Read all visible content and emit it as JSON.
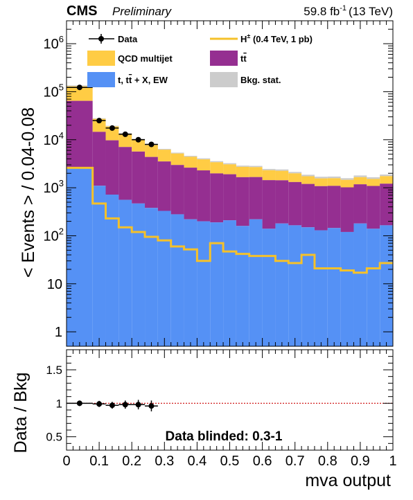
{
  "header": {
    "experiment": "CMS",
    "status": "Preliminary",
    "lumi_value": "59.8 fb",
    "lumi_exp": "-1",
    "energy": "(13 TeV)"
  },
  "colors": {
    "qcd": "#ffcc44",
    "ttbar": "#952f91",
    "other": "#5591f5",
    "signal": "#f5c12a",
    "stat": "#cccccc",
    "data": "#000000",
    "ratio_line": "#cc0000"
  },
  "legend": {
    "data": "Data",
    "signal_pre": "H",
    "signal_sup": "±",
    "signal_post": " (0.4 TeV, 1 pb)",
    "qcd": "QCD multijet",
    "ttbar_pre": "t",
    "ttbar_bar": "t",
    "other_pre": "t, t",
    "other_bar": "t",
    "other_post": " + X, EW",
    "stat": "Bkg. stat."
  },
  "chart_data": {
    "type": "area",
    "xlabel": "mva output",
    "ylabel_upper": "< Events > / 0.04-0.08",
    "ylabel_lower": "Data / Bkg",
    "log_scale_y": true,
    "xlim": [
      0,
      1
    ],
    "ylim": [
      0.5,
      3000000
    ],
    "ratio_ylim": [
      0.3,
      1.8
    ],
    "annotation": "Data blinded: 0.3-1",
    "x_tick_labels": [
      "0",
      "0.1",
      "0.2",
      "0.3",
      "0.4",
      "0.5",
      "0.6",
      "0.7",
      "0.8",
      "0.9",
      "1"
    ],
    "y_tick_labels": [
      {
        "value": 1,
        "base": "1",
        "exp": ""
      },
      {
        "value": 10,
        "base": "10",
        "exp": ""
      },
      {
        "value": 100,
        "base": "10",
        "exp": "2"
      },
      {
        "value": 1000,
        "base": "10",
        "exp": "3"
      },
      {
        "value": 10000,
        "base": "10",
        "exp": "4"
      },
      {
        "value": 100000,
        "base": "10",
        "exp": "5"
      },
      {
        "value": 1000000,
        "base": "10",
        "exp": "6"
      }
    ],
    "ratio_tick_labels": [
      "0.5",
      "1",
      "1.5"
    ],
    "bin_edges": [
      0,
      0.08,
      0.12,
      0.16,
      0.2,
      0.24,
      0.28,
      0.32,
      0.36,
      0.4,
      0.44,
      0.48,
      0.52,
      0.56,
      0.6,
      0.64,
      0.68,
      0.72,
      0.76,
      0.8,
      0.84,
      0.88,
      0.92,
      0.96,
      1.0
    ],
    "series": [
      {
        "name": "t, tt + X, EW",
        "key": "other",
        "values": [
          2500,
          1100,
          720,
          560,
          470,
          380,
          330,
          280,
          220,
          200,
          190,
          210,
          160,
          220,
          140,
          180,
          165,
          150,
          130,
          145,
          120,
          180,
          140,
          165
        ]
      },
      {
        "name": "tt",
        "key": "ttbar",
        "values": [
          62000,
          13500,
          9000,
          6500,
          5200,
          4000,
          3200,
          2700,
          2400,
          2100,
          1800,
          1700,
          1500,
          1450,
          1300,
          1250,
          1150,
          1050,
          950,
          950,
          900,
          1000,
          950,
          1050
        ]
      },
      {
        "name": "QCD multijet",
        "key": "qcd",
        "values": [
          68000,
          13000,
          9500,
          6500,
          4700,
          3500,
          2800,
          2300,
          1900,
          1700,
          1500,
          1250,
          1150,
          1100,
          950,
          900,
          750,
          600,
          550,
          550,
          500,
          550,
          500,
          600
        ]
      }
    ],
    "stat_unc": [
      3000,
      400,
      300,
      220,
      170,
      140,
      120,
      110,
      100,
      95,
      90,
      85,
      80,
      80,
      75,
      75,
      70,
      65,
      65,
      65,
      60,
      70,
      65,
      70
    ],
    "signal": {
      "name": "H± (0.4 TeV, 1 pb)",
      "values": [
        2600,
        470,
        230,
        150,
        120,
        95,
        80,
        60,
        52,
        30,
        70,
        47,
        42,
        38,
        38,
        30,
        27,
        40,
        21,
        21,
        19,
        17,
        21,
        27
      ]
    },
    "data_points": [
      {
        "x": 0.04,
        "xerr": 0.04,
        "y": 123000,
        "yerr": 350,
        "ratio": 1.0,
        "ratio_err": 0.01
      },
      {
        "x": 0.1,
        "xerr": 0.02,
        "y": 25000,
        "yerr": 160,
        "ratio": 0.99,
        "ratio_err": 0.015
      },
      {
        "x": 0.14,
        "xerr": 0.02,
        "y": 17500,
        "yerr": 130,
        "ratio": 0.97,
        "ratio_err": 0.02
      },
      {
        "x": 0.18,
        "xerr": 0.02,
        "y": 13000,
        "yerr": 115,
        "ratio": 0.98,
        "ratio_err": 0.03
      },
      {
        "x": 0.22,
        "xerr": 0.02,
        "y": 10000,
        "yerr": 100,
        "ratio": 0.98,
        "ratio_err": 0.04
      },
      {
        "x": 0.26,
        "xerr": 0.02,
        "y": 8000,
        "yerr": 90,
        "ratio": 0.96,
        "ratio_err": 0.05
      }
    ]
  }
}
